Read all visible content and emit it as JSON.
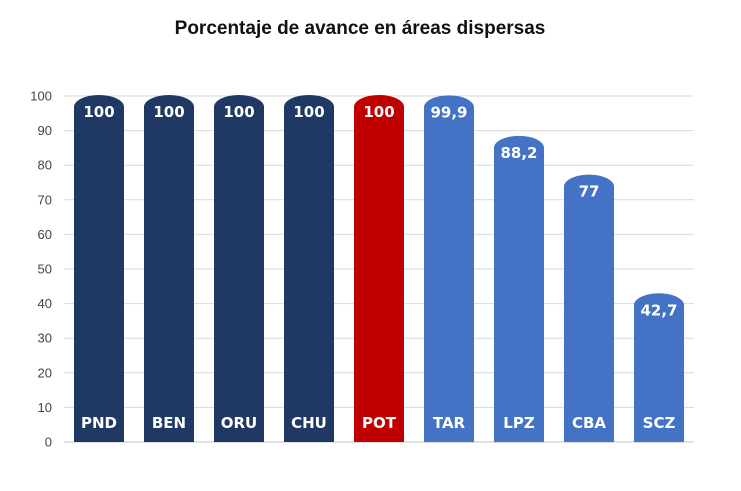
{
  "chart_data": {
    "type": "bar",
    "title": "Porcentaje de avance en áreas dispersas",
    "xlabel": "",
    "ylabel": "",
    "ylim": [
      0,
      100
    ],
    "yticks": [
      0,
      10,
      20,
      30,
      40,
      50,
      60,
      70,
      80,
      90,
      100
    ],
    "grid": true,
    "categories": [
      "PND",
      "BEN",
      "ORU",
      "CHU",
      "POT",
      "TAR",
      "LPZ",
      "CBA",
      "SCZ"
    ],
    "values": [
      100,
      100,
      100,
      100,
      100,
      99.9,
      88.2,
      77,
      42.7
    ],
    "value_labels": [
      "100",
      "100",
      "100",
      "100",
      "100",
      "99,9",
      "88,2",
      "77",
      "42,7"
    ],
    "colors": [
      "#1f3864",
      "#1f3864",
      "#1f3864",
      "#1f3864",
      "#c00000",
      "#4472c4",
      "#4472c4",
      "#4472c4",
      "#4472c4"
    ]
  }
}
